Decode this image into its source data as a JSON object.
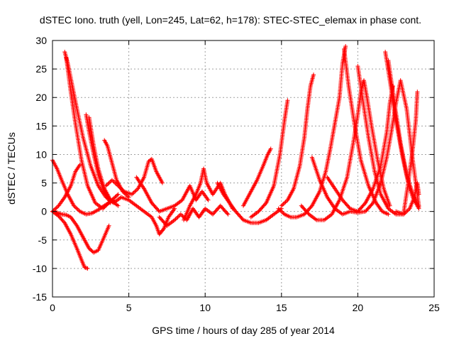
{
  "chart_data": {
    "type": "scatter",
    "title": "dSTEC Iono. truth (yell, Lon=245, Lat=62, h=178): STEC-STEC_elemax in phase cont.",
    "xlabel": "GPS time / hours of day 285 of year 2014",
    "ylabel": "dSTEC  / TECUs",
    "xlim": [
      0,
      25
    ],
    "ylim": [
      -15,
      30
    ],
    "xticks": [
      0,
      5,
      10,
      15,
      20,
      25
    ],
    "yticks": [
      -15,
      -10,
      -5,
      0,
      5,
      10,
      15,
      20,
      25,
      30
    ],
    "grid": true,
    "legend": "none",
    "marker": "+",
    "color": "#ff0000",
    "tracks": [
      {
        "points": [
          [
            0.0,
            9.0
          ],
          [
            0.3,
            7.5
          ],
          [
            0.6,
            5.5
          ],
          [
            1.0,
            3.0
          ],
          [
            1.4,
            1.0
          ],
          [
            1.8,
            0.0
          ],
          [
            2.2,
            -0.5
          ],
          [
            2.6,
            -0.3
          ],
          [
            3.0,
            0.3
          ],
          [
            3.5,
            1.2
          ],
          [
            4.0,
            2.0
          ]
        ]
      },
      {
        "points": [
          [
            0.0,
            0.0
          ],
          [
            0.4,
            1.0
          ],
          [
            0.8,
            2.5
          ],
          [
            1.2,
            4.5
          ],
          [
            1.5,
            7.0
          ],
          [
            1.8,
            8.2
          ]
        ]
      },
      {
        "points": [
          [
            0.0,
            0.0
          ],
          [
            0.4,
            -0.8
          ],
          [
            0.8,
            -2.0
          ],
          [
            1.2,
            -4.0
          ],
          [
            1.6,
            -6.5
          ],
          [
            1.9,
            -8.5
          ],
          [
            2.1,
            -9.8
          ],
          [
            2.3,
            -10.0
          ]
        ]
      },
      {
        "points": [
          [
            0.0,
            0.0
          ],
          [
            0.3,
            -0.2
          ],
          [
            0.6,
            -0.5
          ],
          [
            0.9,
            -0.6
          ],
          [
            1.2,
            -1.0
          ],
          [
            1.6,
            -2.5
          ],
          [
            2.0,
            -4.5
          ],
          [
            2.4,
            -6.5
          ],
          [
            2.7,
            -7.2
          ],
          [
            3.0,
            -6.8
          ],
          [
            3.3,
            -5.0
          ],
          [
            3.7,
            -2.5
          ]
        ]
      },
      {
        "points": [
          [
            0.8,
            28.0
          ],
          [
            1.0,
            26.0
          ],
          [
            1.3,
            22.0
          ],
          [
            1.6,
            18.0
          ],
          [
            2.0,
            13.0
          ],
          [
            2.5,
            8.0
          ],
          [
            3.0,
            4.5
          ],
          [
            3.5,
            2.5
          ],
          [
            4.0,
            1.5
          ],
          [
            4.5,
            2.5
          ]
        ]
      },
      {
        "points": [
          [
            0.9,
            27.0
          ],
          [
            1.2,
            21.0
          ],
          [
            1.5,
            15.5
          ],
          [
            1.9,
            9.0
          ],
          [
            2.3,
            4.5
          ],
          [
            2.8,
            1.5
          ],
          [
            3.3,
            0.5
          ],
          [
            3.8,
            1.8
          ],
          [
            4.3,
            3.0
          ]
        ]
      },
      {
        "points": [
          [
            2.2,
            17.0
          ],
          [
            2.4,
            14.0
          ],
          [
            2.7,
            10.0
          ],
          [
            3.0,
            6.5
          ],
          [
            3.4,
            3.5
          ],
          [
            3.8,
            1.5
          ]
        ]
      },
      {
        "points": [
          [
            2.4,
            16.5
          ],
          [
            2.7,
            11.5
          ],
          [
            3.0,
            7.5
          ],
          [
            3.4,
            4.0
          ],
          [
            3.8,
            2.0
          ],
          [
            4.3,
            1.0
          ]
        ]
      },
      {
        "points": [
          [
            3.4,
            12.5
          ],
          [
            3.6,
            11.5
          ],
          [
            3.9,
            8.5
          ],
          [
            4.2,
            5.5
          ],
          [
            4.6,
            3.5
          ],
          [
            5.0,
            2.5
          ]
        ]
      },
      {
        "points": [
          [
            3.5,
            4.5
          ],
          [
            3.9,
            5.5
          ],
          [
            4.3,
            4.5
          ],
          [
            4.7,
            3.5
          ],
          [
            5.2,
            3.0
          ],
          [
            5.6,
            4.0
          ],
          [
            6.0,
            6.0
          ],
          [
            6.3,
            8.8
          ],
          [
            6.5,
            9.2
          ],
          [
            6.8,
            7.0
          ],
          [
            7.2,
            5.0
          ]
        ]
      },
      {
        "points": [
          [
            4.5,
            2.5
          ],
          [
            5.0,
            2.0
          ],
          [
            5.5,
            1.0
          ],
          [
            6.0,
            0.0
          ],
          [
            6.5,
            -1.0
          ],
          [
            6.8,
            -2.5
          ],
          [
            7.0,
            -4.0
          ],
          [
            7.3,
            -3.0
          ],
          [
            7.6,
            -1.0
          ],
          [
            8.0,
            0.5
          ]
        ]
      },
      {
        "points": [
          [
            5.5,
            6.0
          ],
          [
            6.0,
            4.0
          ],
          [
            6.5,
            1.5
          ],
          [
            7.0,
            0.0
          ],
          [
            7.5,
            0.5
          ],
          [
            8.0,
            1.0
          ],
          [
            8.5,
            2.0
          ],
          [
            9.0,
            4.5
          ],
          [
            9.4,
            2.0
          ],
          [
            9.8,
            3.5
          ],
          [
            10.2,
            2.0
          ]
        ]
      },
      {
        "points": [
          [
            7.0,
            -1.0
          ],
          [
            7.5,
            -2.5
          ],
          [
            8.0,
            -1.5
          ],
          [
            8.4,
            -0.5
          ],
          [
            8.8,
            -1.5
          ],
          [
            9.2,
            0.5
          ],
          [
            9.6,
            -1.0
          ],
          [
            10.0,
            0.5
          ],
          [
            10.5,
            -0.5
          ],
          [
            11.0,
            1.0
          ],
          [
            11.5,
            -0.5
          ]
        ]
      },
      {
        "points": [
          [
            8.6,
            -1.5
          ],
          [
            9.0,
            1.0
          ],
          [
            9.4,
            3.0
          ],
          [
            9.7,
            5.0
          ],
          [
            9.9,
            7.5
          ],
          [
            10.1,
            5.0
          ],
          [
            10.5,
            3.0
          ],
          [
            11.0,
            5.0
          ],
          [
            11.3,
            3.0
          ],
          [
            11.8,
            0.5
          ]
        ]
      },
      {
        "points": [
          [
            10.8,
            5.0
          ],
          [
            11.2,
            3.0
          ],
          [
            11.6,
            1.5
          ],
          [
            12.0,
            0.0
          ],
          [
            12.5,
            -1.5
          ],
          [
            13.0,
            -2.0
          ],
          [
            13.5,
            -2.0
          ],
          [
            14.0,
            -1.5
          ],
          [
            14.5,
            -0.5
          ],
          [
            15.0,
            0.5
          ]
        ]
      },
      {
        "points": [
          [
            12.5,
            1.0
          ],
          [
            13.0,
            3.5
          ],
          [
            13.4,
            5.5
          ],
          [
            13.8,
            8.0
          ],
          [
            14.1,
            10.0
          ],
          [
            14.3,
            11.0
          ]
        ]
      },
      {
        "points": [
          [
            13.0,
            -1.0
          ],
          [
            13.5,
            0.0
          ],
          [
            14.0,
            1.5
          ],
          [
            14.5,
            4.5
          ],
          [
            14.9,
            10.0
          ],
          [
            15.2,
            16.0
          ],
          [
            15.4,
            19.5
          ]
        ]
      },
      {
        "points": [
          [
            15.0,
            1.0
          ],
          [
            15.4,
            2.0
          ],
          [
            15.8,
            4.0
          ],
          [
            16.2,
            8.0
          ],
          [
            16.5,
            13.0
          ],
          [
            16.7,
            18.0
          ],
          [
            16.9,
            22.0
          ],
          [
            17.1,
            24.0
          ]
        ]
      },
      {
        "points": [
          [
            14.8,
            0.5
          ],
          [
            15.2,
            -0.5
          ],
          [
            15.6,
            -1.0
          ],
          [
            16.0,
            -1.0
          ],
          [
            16.5,
            -0.5
          ],
          [
            17.0,
            1.0
          ],
          [
            17.5,
            3.5
          ],
          [
            17.9,
            7.0
          ],
          [
            18.2,
            11.0
          ],
          [
            18.5,
            15.5
          ],
          [
            18.8,
            20.0
          ],
          [
            19.0,
            26.0
          ],
          [
            19.2,
            29.0
          ]
        ]
      },
      {
        "points": [
          [
            16.3,
            1.0
          ],
          [
            16.8,
            -0.5
          ],
          [
            17.3,
            -1.5
          ],
          [
            17.8,
            -1.5
          ],
          [
            18.3,
            -0.5
          ],
          [
            18.8,
            2.0
          ],
          [
            19.3,
            6.0
          ],
          [
            19.7,
            12.0
          ],
          [
            20.0,
            17.0
          ],
          [
            20.2,
            21.0
          ],
          [
            20.4,
            23.0
          ],
          [
            20.6,
            20.0
          ],
          [
            20.9,
            15.0
          ],
          [
            21.3,
            9.0
          ],
          [
            21.7,
            4.0
          ],
          [
            22.1,
            1.0
          ]
        ]
      },
      {
        "points": [
          [
            19.1,
            28.5
          ],
          [
            19.4,
            22.0
          ],
          [
            19.8,
            15.0
          ],
          [
            20.2,
            9.0
          ],
          [
            20.7,
            4.5
          ],
          [
            21.2,
            1.5
          ],
          [
            21.6,
            0.0
          ],
          [
            22.0,
            -0.5
          ]
        ]
      },
      {
        "points": [
          [
            20.0,
            25.5
          ],
          [
            20.3,
            20.0
          ],
          [
            20.7,
            13.0
          ],
          [
            21.1,
            7.0
          ],
          [
            21.5,
            3.0
          ],
          [
            22.0,
            0.5
          ],
          [
            22.5,
            -0.5
          ],
          [
            23.0,
            -0.5
          ]
        ]
      },
      {
        "points": [
          [
            17.0,
            9.5
          ],
          [
            17.5,
            5.5
          ],
          [
            18.0,
            2.5
          ],
          [
            18.5,
            0.5
          ],
          [
            19.0,
            -0.5
          ],
          [
            19.5,
            0.0
          ],
          [
            20.0,
            -0.2
          ],
          [
            20.5,
            0.0
          ],
          [
            21.0,
            1.5
          ],
          [
            21.5,
            5.0
          ],
          [
            21.9,
            9.5
          ],
          [
            22.2,
            14.0
          ],
          [
            22.5,
            19.0
          ],
          [
            22.8,
            23.0
          ],
          [
            23.2,
            18.0
          ],
          [
            23.6,
            9.0
          ],
          [
            24.0,
            1.0
          ]
        ]
      },
      {
        "points": [
          [
            18.0,
            6.0
          ],
          [
            18.5,
            4.0
          ],
          [
            19.0,
            2.0
          ],
          [
            19.5,
            0.5
          ],
          [
            20.0,
            0.0
          ],
          [
            20.5,
            1.5
          ],
          [
            21.0,
            4.0
          ],
          [
            21.5,
            8.0
          ],
          [
            21.9,
            14.0
          ],
          [
            22.1,
            19.0
          ],
          [
            22.3,
            22.0
          ]
        ]
      },
      {
        "points": [
          [
            21.8,
            28.0
          ],
          [
            22.1,
            23.0
          ],
          [
            22.5,
            16.0
          ],
          [
            22.9,
            10.0
          ],
          [
            23.3,
            5.0
          ],
          [
            23.6,
            2.5
          ],
          [
            24.0,
            0.5
          ]
        ]
      },
      {
        "points": [
          [
            22.0,
            26.5
          ],
          [
            22.4,
            19.0
          ],
          [
            22.8,
            12.0
          ],
          [
            23.2,
            6.5
          ],
          [
            23.6,
            3.0
          ],
          [
            24.0,
            0.8
          ]
        ]
      },
      {
        "points": [
          [
            22.5,
            0.0
          ],
          [
            23.0,
            -0.5
          ],
          [
            23.4,
            0.5
          ],
          [
            23.7,
            2.5
          ],
          [
            23.9,
            5.0
          ],
          [
            24.0,
            3.0
          ]
        ]
      },
      {
        "points": [
          [
            23.0,
            -0.3
          ],
          [
            23.3,
            5.0
          ],
          [
            23.6,
            11.0
          ],
          [
            23.8,
            16.0
          ],
          [
            23.9,
            21.0
          ]
        ]
      }
    ]
  }
}
